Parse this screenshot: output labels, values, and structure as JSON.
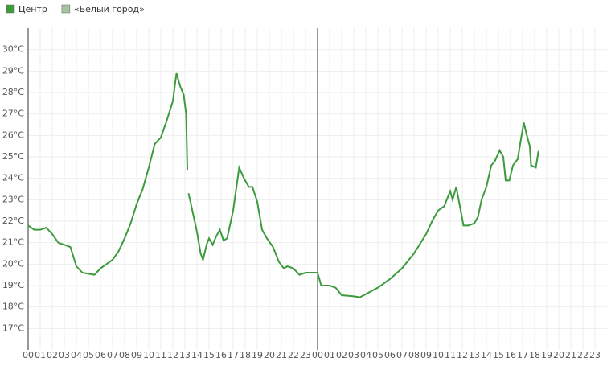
{
  "chart_data": {
    "type": "line",
    "xlim": [
      0,
      48
    ],
    "ylim": [
      16,
      31
    ],
    "xticks": [
      {
        "value": 0,
        "label": "00"
      },
      {
        "value": 1,
        "label": "01"
      },
      {
        "value": 2,
        "label": "02"
      },
      {
        "value": 3,
        "label": "03"
      },
      {
        "value": 4,
        "label": "04"
      },
      {
        "value": 5,
        "label": "05"
      },
      {
        "value": 6,
        "label": "06"
      },
      {
        "value": 7,
        "label": "07"
      },
      {
        "value": 8,
        "label": "08"
      },
      {
        "value": 9,
        "label": "09"
      },
      {
        "value": 10,
        "label": "10"
      },
      {
        "value": 11,
        "label": "11"
      },
      {
        "value": 12,
        "label": "12"
      },
      {
        "value": 13,
        "label": "13"
      },
      {
        "value": 14,
        "label": "14"
      },
      {
        "value": 15,
        "label": "15"
      },
      {
        "value": 16,
        "label": "16"
      },
      {
        "value": 17,
        "label": "17"
      },
      {
        "value": 18,
        "label": "18"
      },
      {
        "value": 19,
        "label": "19"
      },
      {
        "value": 20,
        "label": "20"
      },
      {
        "value": 21,
        "label": "21"
      },
      {
        "value": 22,
        "label": "22"
      },
      {
        "value": 23,
        "label": "23"
      },
      {
        "value": 24,
        "label": "00"
      },
      {
        "value": 25,
        "label": "01"
      },
      {
        "value": 26,
        "label": "02"
      },
      {
        "value": 27,
        "label": "03"
      },
      {
        "value": 28,
        "label": "04"
      },
      {
        "value": 29,
        "label": "05"
      },
      {
        "value": 30,
        "label": "06"
      },
      {
        "value": 31,
        "label": "07"
      },
      {
        "value": 32,
        "label": "08"
      },
      {
        "value": 33,
        "label": "09"
      },
      {
        "value": 34,
        "label": "10"
      },
      {
        "value": 35,
        "label": "11"
      },
      {
        "value": 36,
        "label": "12"
      },
      {
        "value": 37,
        "label": "13"
      },
      {
        "value": 38,
        "label": "14"
      },
      {
        "value": 39,
        "label": "15"
      },
      {
        "value": 40,
        "label": "16"
      },
      {
        "value": 41,
        "label": "17"
      },
      {
        "value": 42,
        "label": "18"
      },
      {
        "value": 43,
        "label": "19"
      },
      {
        "value": 44,
        "label": "20"
      },
      {
        "value": 45,
        "label": "21"
      },
      {
        "value": 46,
        "label": "22"
      },
      {
        "value": 47,
        "label": "23"
      }
    ],
    "yticks": [
      {
        "value": 17,
        "label": "17°C"
      },
      {
        "value": 18,
        "label": "18°C"
      },
      {
        "value": 19,
        "label": "19°C"
      },
      {
        "value": 20,
        "label": "20°C"
      },
      {
        "value": 21,
        "label": "21°C"
      },
      {
        "value": 22,
        "label": "22°C"
      },
      {
        "value": 23,
        "label": "23°C"
      },
      {
        "value": 24,
        "label": "24°C"
      },
      {
        "value": 25,
        "label": "25°C"
      },
      {
        "value": 26,
        "label": "26°C"
      },
      {
        "value": 27,
        "label": "27°C"
      },
      {
        "value": 28,
        "label": "28°C"
      },
      {
        "value": 29,
        "label": "29°C"
      },
      {
        "value": 30,
        "label": "30°C"
      }
    ],
    "grid": true,
    "marker_x": 24,
    "series": [
      {
        "name": "Центр",
        "color": "#3d9a3d",
        "x": [
          0,
          0.5,
          1,
          1.5,
          2,
          2.5,
          3,
          3.5,
          4,
          4.5,
          5,
          5.5,
          6,
          6.5,
          7,
          7.5,
          8,
          8.5,
          9,
          9.5,
          10,
          10.5,
          11,
          11.5,
          12,
          12.3,
          12.6,
          12.9,
          13.1,
          13.2,
          13.25,
          13.3,
          13.5,
          14,
          14.3,
          14.5,
          14.8,
          15,
          15.3,
          15.6,
          15.9,
          16.2,
          16.5,
          17,
          17.5,
          17.9,
          18.3,
          18.6,
          19,
          19.4,
          19.8,
          20.3,
          20.8,
          21.2,
          21.5,
          22,
          22.5,
          23,
          23.5,
          24,
          24.3,
          25,
          25.5,
          26,
          27,
          27.5,
          28,
          29,
          30,
          31,
          32,
          33,
          33.5,
          34,
          34.5,
          35,
          35.2,
          35.5,
          35.8,
          36.1,
          36.5,
          37,
          37.3,
          37.6,
          38,
          38.4,
          38.7,
          39.1,
          39.4,
          39.6,
          39.9,
          40.2,
          40.6,
          40.8,
          41.1,
          41.4,
          41.6,
          41.7,
          42.1,
          42.3,
          42.4
        ],
        "values": [
          21.8,
          21.6,
          21.6,
          21.7,
          21.4,
          21.0,
          20.9,
          20.8,
          19.9,
          19.6,
          19.55,
          19.5,
          19.8,
          20.0,
          20.2,
          20.6,
          21.2,
          21.9,
          22.8,
          23.5,
          24.5,
          25.6,
          25.9,
          26.7,
          27.6,
          28.9,
          28.3,
          27.9,
          27.0,
          24.4,
          null,
          23.3,
          22.8,
          21.5,
          20.5,
          20.2,
          20.9,
          21.2,
          20.9,
          21.3,
          21.6,
          21.1,
          21.2,
          22.5,
          24.5,
          24.0,
          23.6,
          23.6,
          22.9,
          21.6,
          21.2,
          20.8,
          20.1,
          19.8,
          19.9,
          19.8,
          19.5,
          19.6,
          19.6,
          19.6,
          19.0,
          19.0,
          18.9,
          18.55,
          18.5,
          18.45,
          18.6,
          18.9,
          19.3,
          19.8,
          20.5,
          21.4,
          22.0,
          22.5,
          22.7,
          23.4,
          23.0,
          23.6,
          22.7,
          21.8,
          21.8,
          21.9,
          22.2,
          23.0,
          23.6,
          24.6,
          24.8,
          25.3,
          25.0,
          23.9,
          23.9,
          24.6,
          24.9,
          25.6,
          26.6,
          25.9,
          25.5,
          24.6,
          24.5,
          25.2,
          25.1
        ]
      },
      {
        "name": "«Белый город»",
        "color": "#a3c49f",
        "x": [],
        "values": []
      }
    ]
  }
}
